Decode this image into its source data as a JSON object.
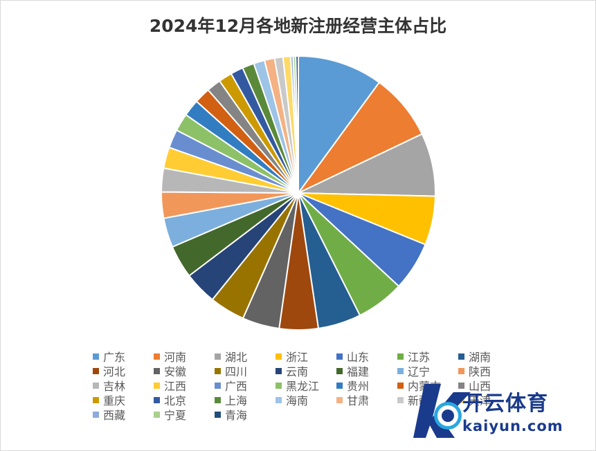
{
  "chart_data": {
    "type": "pie",
    "title": "2024年12月各地新注册经营主体占比",
    "slices": [
      {
        "label": "广东",
        "value": 10.1,
        "color": "#5b9bd5"
      },
      {
        "label": "河南",
        "value": 7.9,
        "color": "#ed7d31"
      },
      {
        "label": "湖北",
        "value": 7.5,
        "color": "#a5a5a5"
      },
      {
        "label": "浙江",
        "value": 5.8,
        "color": "#ffc000"
      },
      {
        "label": "山东",
        "value": 5.8,
        "color": "#4472c4"
      },
      {
        "label": "江苏",
        "value": 5.7,
        "color": "#70ad47"
      },
      {
        "label": "湖南",
        "value": 5.1,
        "color": "#255e91"
      },
      {
        "label": "河北",
        "value": 4.6,
        "color": "#9e480e"
      },
      {
        "label": "安徽",
        "value": 4.4,
        "color": "#636363"
      },
      {
        "label": "四川",
        "value": 4.2,
        "color": "#997300"
      },
      {
        "label": "云南",
        "value": 3.9,
        "color": "#264478"
      },
      {
        "label": "福建",
        "value": 3.9,
        "color": "#43682b"
      },
      {
        "label": "辽宁",
        "value": 3.5,
        "color": "#7cafdd"
      },
      {
        "label": "陕西",
        "value": 3.1,
        "color": "#f1975a"
      },
      {
        "label": "吉林",
        "value": 2.8,
        "color": "#b7b7b7"
      },
      {
        "label": "江西",
        "value": 2.5,
        "color": "#ffcd33"
      },
      {
        "label": "广西",
        "value": 2.2,
        "color": "#698ed0"
      },
      {
        "label": "黑龙江",
        "value": 2.1,
        "color": "#8cc168"
      },
      {
        "label": "贵州",
        "value": 2.0,
        "color": "#327dc2"
      },
      {
        "label": "内蒙古",
        "value": 1.9,
        "color": "#d26012"
      },
      {
        "label": "山西",
        "value": 1.7,
        "color": "#848484"
      },
      {
        "label": "重庆",
        "value": 1.6,
        "color": "#cc9a00"
      },
      {
        "label": "北京",
        "value": 1.5,
        "color": "#335aa1"
      },
      {
        "label": "上海",
        "value": 1.4,
        "color": "#5a8a39"
      },
      {
        "label": "海南",
        "value": 1.3,
        "color": "#9dc3e6"
      },
      {
        "label": "甘肃",
        "value": 1.2,
        "color": "#f4b183"
      },
      {
        "label": "新疆",
        "value": 1.0,
        "color": "#c9c9c9"
      },
      {
        "label": "天津",
        "value": 0.9,
        "color": "#ffd966"
      },
      {
        "label": "西藏",
        "value": 0.3,
        "color": "#8faadc"
      },
      {
        "label": "宁夏",
        "value": 0.3,
        "color": "#a9d18e"
      },
      {
        "label": "青海",
        "value": 0.3,
        "color": "#1f4e79"
      }
    ],
    "legend_position": "bottom"
  },
  "watermark": {
    "brand": "开云体育",
    "url": "kaiyun.com"
  }
}
